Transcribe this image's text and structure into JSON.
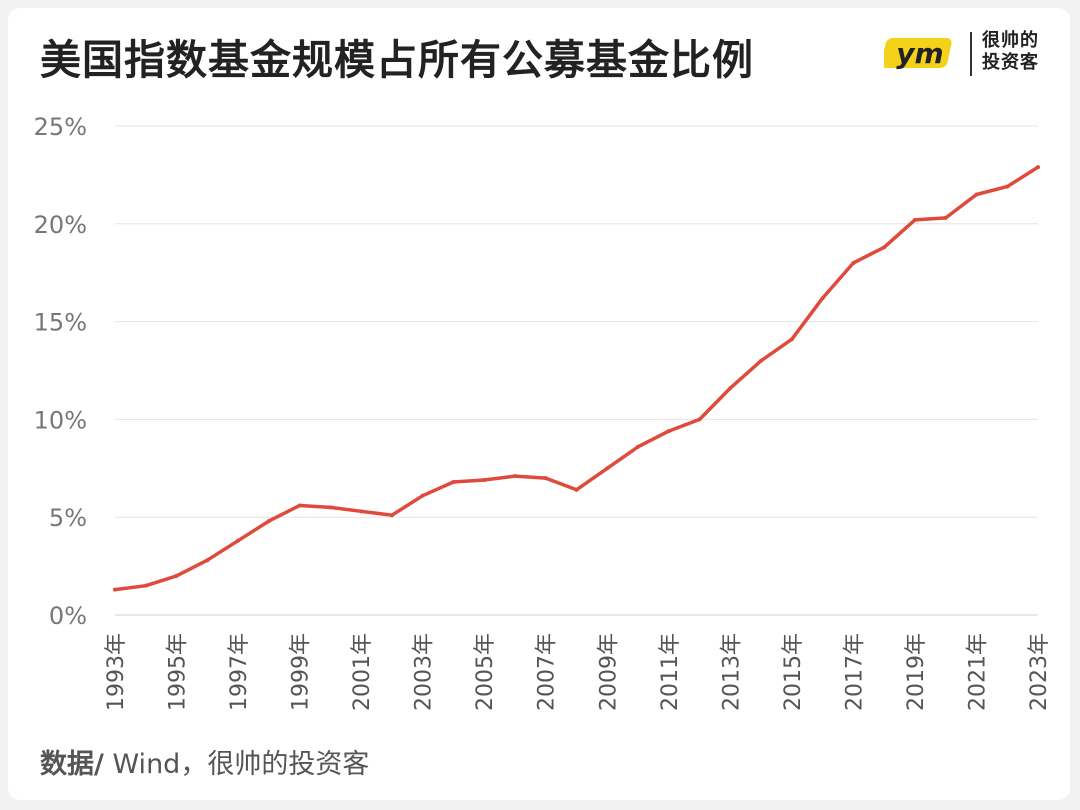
{
  "header": {
    "title": "美国指数基金规模占所有公募基金比例"
  },
  "logo": {
    "mark_text": "ym",
    "line1": "很帅的",
    "line2": "投资客",
    "accent_color": "#f5d21a"
  },
  "footer": {
    "source_label": "数据/",
    "source_text": " Wind，很帅的投资客"
  },
  "chart_data": {
    "type": "line",
    "x": [
      "1993年",
      "1994年",
      "1995年",
      "1996年",
      "1997年",
      "1998年",
      "1999年",
      "2000年",
      "2001年",
      "2002年",
      "2003年",
      "2004年",
      "2005年",
      "2006年",
      "2007年",
      "2008年",
      "2009年",
      "2010年",
      "2011年",
      "2012年",
      "2013年",
      "2014年",
      "2015年",
      "2016年",
      "2017年",
      "2018年",
      "2019年",
      "2020年",
      "2021年",
      "2022年",
      "2023年"
    ],
    "x_tick_labels": [
      "1993年",
      "1995年",
      "1997年",
      "1999年",
      "2001年",
      "2003年",
      "2005年",
      "2007年",
      "2009年",
      "2011年",
      "2013年",
      "2015年",
      "2017年",
      "2019年",
      "2021年",
      "2023年"
    ],
    "series": [
      {
        "values": [
          1.3,
          1.5,
          2.0,
          2.8,
          3.8,
          4.8,
          5.6,
          5.5,
          5.3,
          5.1,
          6.1,
          6.8,
          6.9,
          7.1,
          7.0,
          6.4,
          7.5,
          8.6,
          9.4,
          10.0,
          11.6,
          13.0,
          14.1,
          16.2,
          18.0,
          18.8,
          20.2,
          20.3,
          21.5,
          21.9,
          22.9
        ],
        "color": "#e04a3c"
      }
    ],
    "y_ticks": [
      "0%",
      "5%",
      "10%",
      "15%",
      "20%",
      "25%"
    ],
    "ylim": [
      0,
      25
    ],
    "grid": true,
    "gridline_color": "#e4e4e4"
  }
}
